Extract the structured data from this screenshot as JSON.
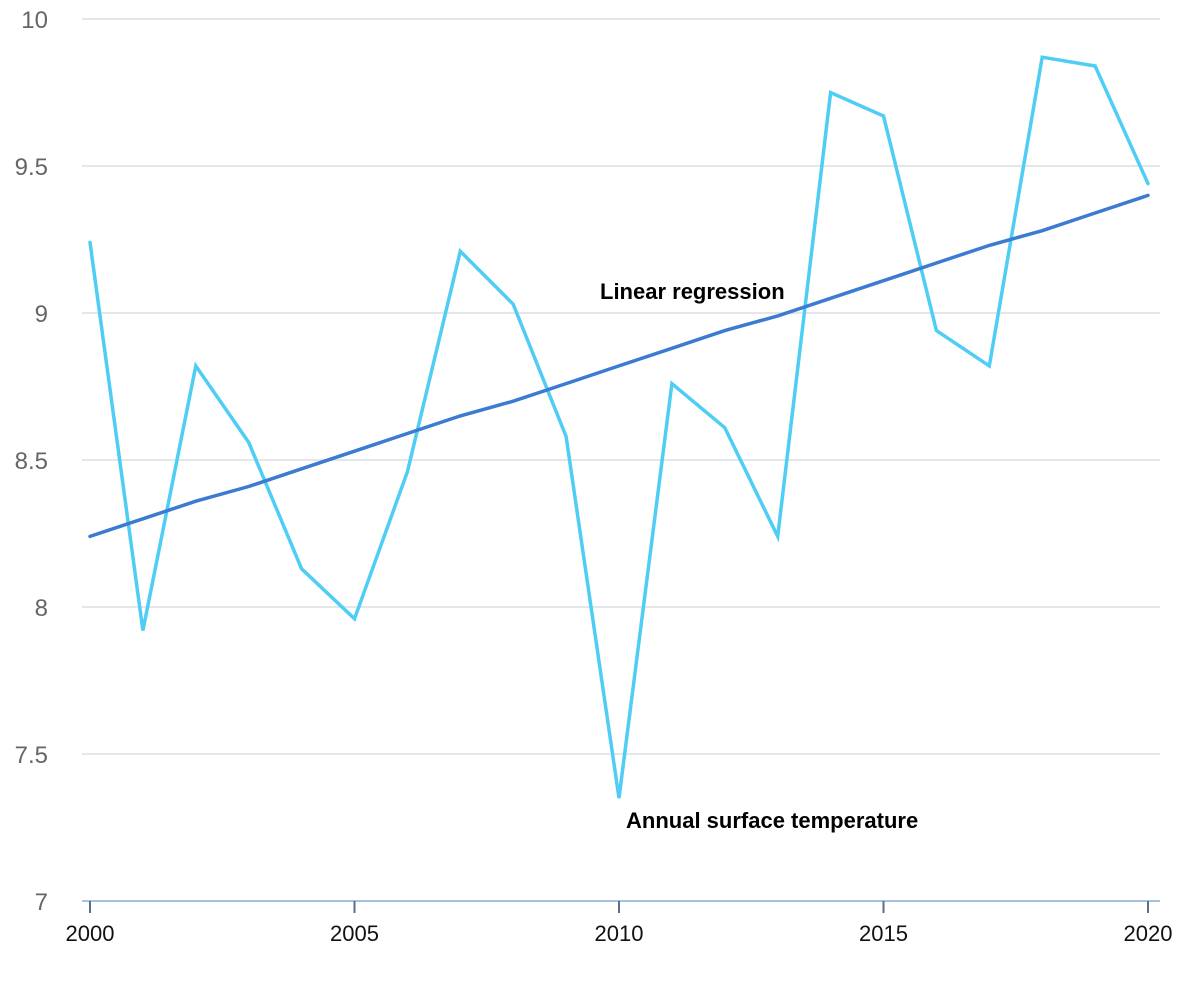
{
  "chart_data": {
    "type": "line",
    "title": "",
    "xlabel": "",
    "ylabel": "",
    "xlim": [
      2000,
      2020
    ],
    "ylim": [
      7,
      10
    ],
    "x_ticks": [
      "2000",
      "2005",
      "2010",
      "2015",
      "2020"
    ],
    "y_ticks": [
      "7",
      "7.5",
      "8",
      "8.5",
      "9",
      "9.5",
      "10"
    ],
    "grid": true,
    "legend": "none",
    "x": [
      2000,
      2001,
      2002,
      2003,
      2004,
      2005,
      2006,
      2007,
      2008,
      2009,
      2010,
      2011,
      2012,
      2013,
      2014,
      2015,
      2016,
      2017,
      2018,
      2019,
      2020
    ],
    "series": [
      {
        "name": "Annual surface temperature",
        "color": "#4fcdf5",
        "values": [
          9.24,
          7.92,
          8.82,
          8.56,
          8.13,
          7.96,
          8.46,
          9.21,
          9.03,
          8.58,
          7.35,
          8.76,
          8.61,
          8.24,
          9.75,
          9.67,
          8.94,
          8.82,
          9.87,
          9.84,
          9.44
        ]
      },
      {
        "name": "Linear regression",
        "color": "#3b7bd0",
        "values": [
          8.24,
          8.3,
          8.36,
          8.41,
          8.47,
          8.53,
          8.59,
          8.65,
          8.7,
          8.76,
          8.82,
          8.88,
          8.94,
          8.99,
          9.05,
          9.11,
          9.17,
          9.23,
          9.28,
          9.34,
          9.4
        ]
      }
    ]
  }
}
